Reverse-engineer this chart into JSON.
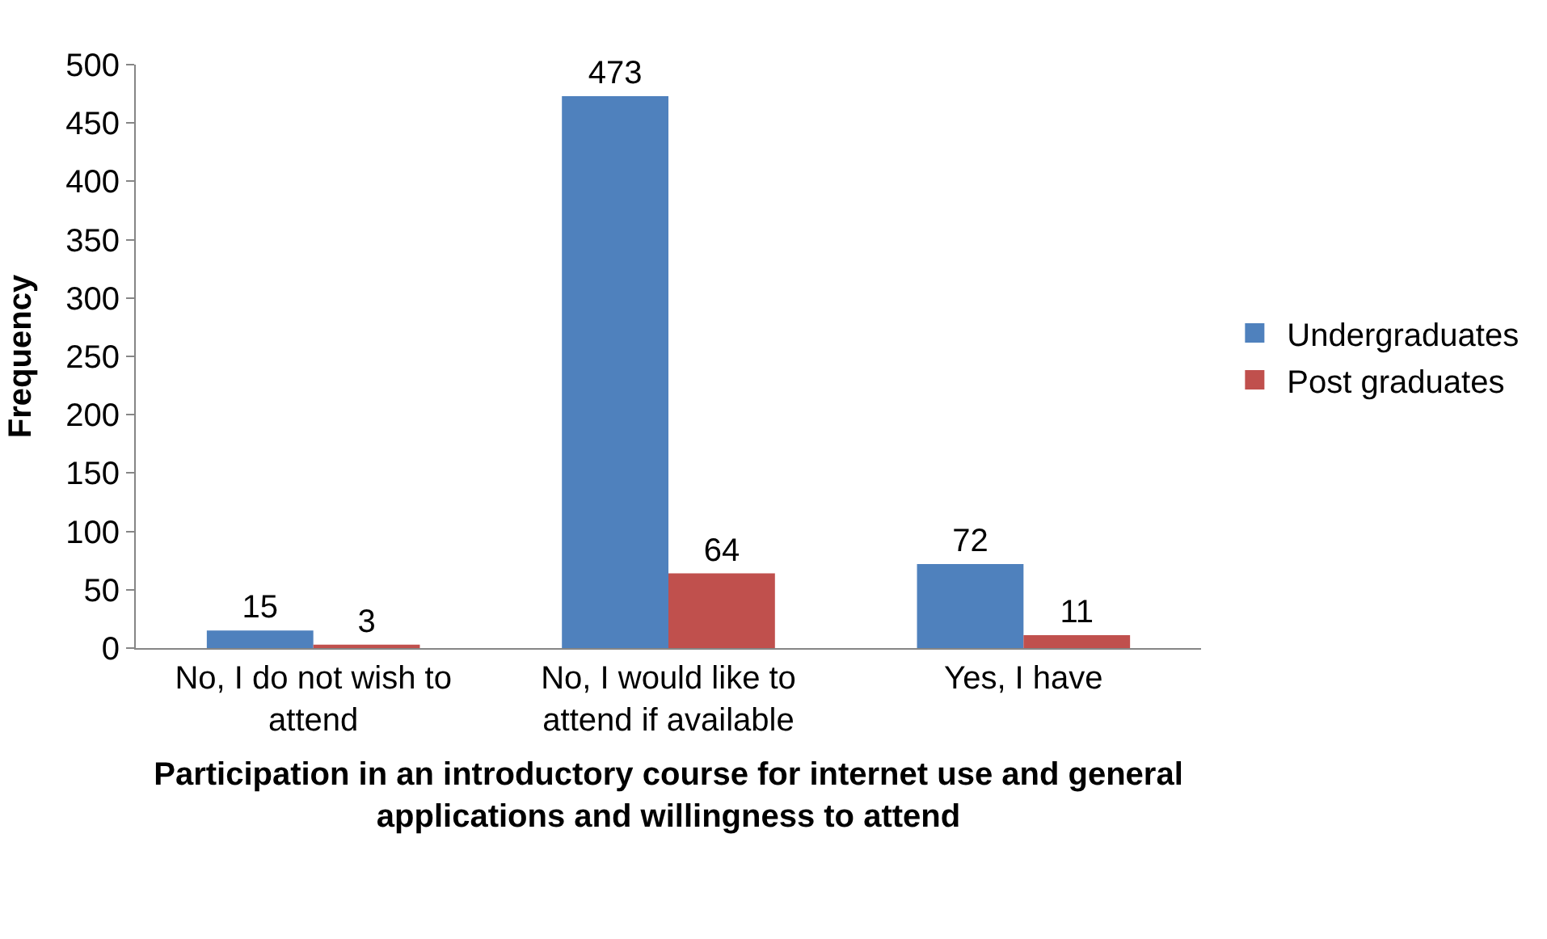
{
  "chart_data": {
    "type": "bar",
    "xlabel": "Participation in an introductory course for internet use and general applications and willingness to attend",
    "ylabel": "Frequency",
    "categories": [
      "No, I do not wish to attend",
      "No, I would like to attend if available",
      "Yes, I have"
    ],
    "series": [
      {
        "name": "Undergraduates",
        "color": "#4f81bd",
        "values": [
          15,
          473,
          72
        ]
      },
      {
        "name": "Post graduates",
        "color": "#c0504d",
        "values": [
          3,
          64,
          11
        ]
      }
    ],
    "ylim": [
      0,
      500
    ],
    "yticks": [
      0,
      50,
      100,
      150,
      200,
      250,
      300,
      350,
      400,
      450,
      500
    ],
    "data_labels": true,
    "legend": "right"
  }
}
